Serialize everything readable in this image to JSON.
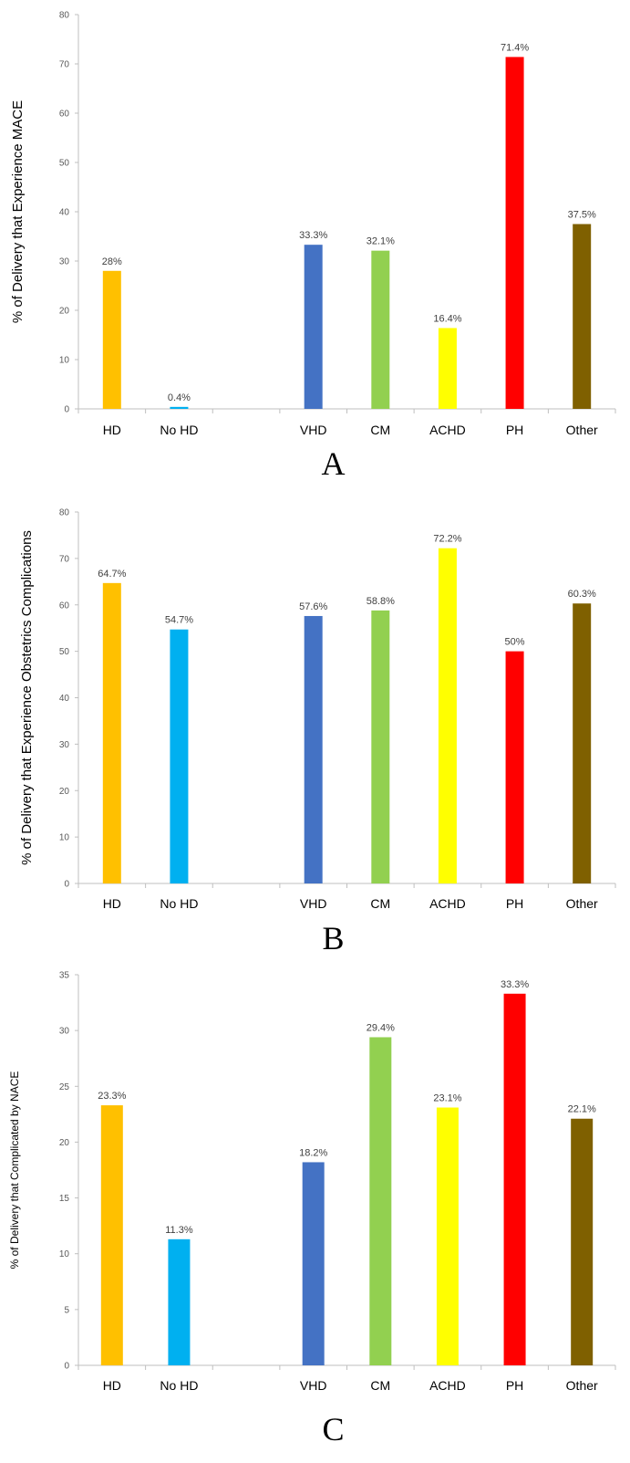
{
  "chart_data": [
    {
      "type": "bar",
      "panel_label": "A",
      "ylabel": "% of Delivery that Experience MACE",
      "ylim": [
        0,
        80
      ],
      "yticks": [
        0,
        10,
        20,
        30,
        40,
        50,
        60,
        70,
        80
      ],
      "grid": false,
      "categories": [
        "HD",
        "No HD",
        "",
        "VHD",
        "CM",
        "ACHD",
        "PH",
        "Other"
      ],
      "values": [
        28,
        0.4,
        null,
        33.3,
        32.1,
        16.4,
        71.4,
        37.5
      ],
      "data_labels": [
        "28%",
        "0.4%",
        "",
        "33.3%",
        "32.1%",
        "16.4%",
        "71.4%",
        "37.5%"
      ],
      "colors": [
        "#FFC000",
        "#00B0F0",
        "",
        "#4472C4",
        "#92D050",
        "#FFFF00",
        "#FF0000",
        "#7F6000"
      ]
    },
    {
      "type": "bar",
      "panel_label": "B",
      "ylabel": "% of Delivery that Experience Obstetrics Complications",
      "ylim": [
        0,
        80
      ],
      "yticks": [
        0,
        10,
        20,
        30,
        40,
        50,
        60,
        70,
        80
      ],
      "grid": false,
      "categories": [
        "HD",
        "No HD",
        "",
        "VHD",
        "CM",
        "ACHD",
        "PH",
        "Other"
      ],
      "values": [
        64.7,
        54.7,
        null,
        57.6,
        58.8,
        72.2,
        50,
        60.3
      ],
      "data_labels": [
        "64.7%",
        "54.7%",
        "",
        "57.6%",
        "58.8%",
        "72.2%",
        "50%",
        "60.3%"
      ],
      "colors": [
        "#FFC000",
        "#00B0F0",
        "",
        "#4472C4",
        "#92D050",
        "#FFFF00",
        "#FF0000",
        "#7F6000"
      ]
    },
    {
      "type": "bar",
      "panel_label": "C",
      "ylabel": "% of Delivery that Complicated by NACE",
      "ylim": [
        0,
        35
      ],
      "yticks": [
        0,
        5,
        10,
        15,
        20,
        25,
        30,
        35
      ],
      "grid": false,
      "categories": [
        "HD",
        "No HD",
        "",
        "VHD",
        "CM",
        "ACHD",
        "PH",
        "Other"
      ],
      "values": [
        23.3,
        11.3,
        null,
        18.2,
        29.4,
        23.1,
        33.3,
        22.1
      ],
      "data_labels": [
        "23.3%",
        "11.3%",
        "",
        "18.2%",
        "29.4%",
        "23.1%",
        "33.3%",
        "22.1%"
      ],
      "colors": [
        "#FFC000",
        "#00B0F0",
        "",
        "#4472C4",
        "#92D050",
        "#FFFF00",
        "#FF0000",
        "#7F6000"
      ]
    }
  ]
}
